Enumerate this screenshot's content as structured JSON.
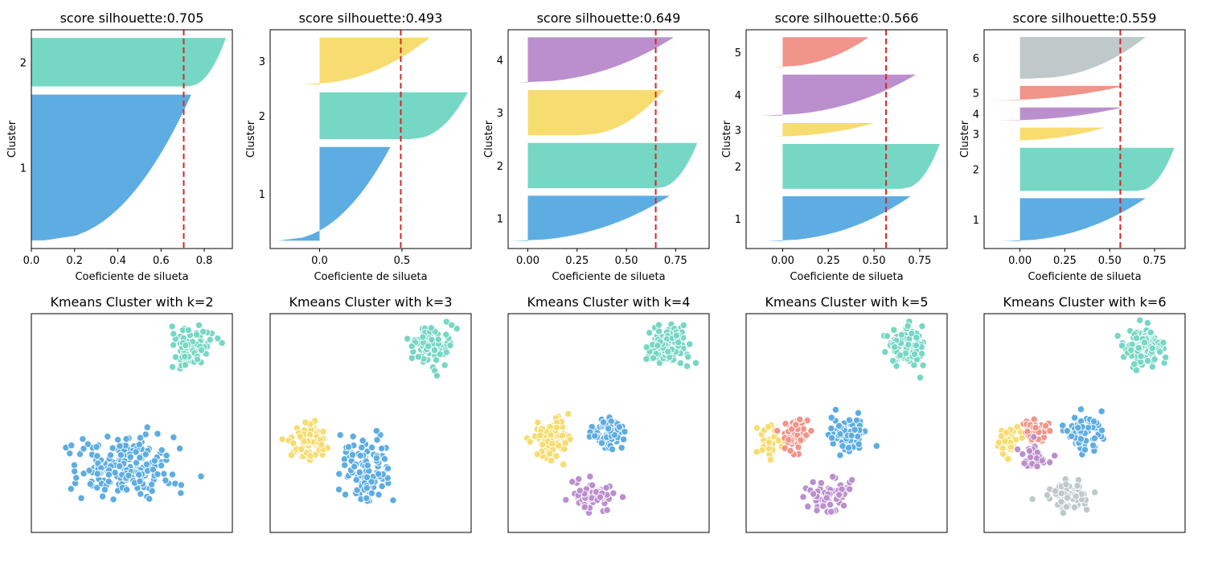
{
  "colors": {
    "c1": "#5DADE2",
    "c2": "#76D7C4",
    "c3": "#F7DC6F",
    "c4": "#BB8FCE",
    "c5": "#F1948A",
    "c6": "#BFC9CA",
    "mean_line": "#D62728"
  },
  "chart_data": [
    {
      "type": "bar",
      "subtype": "silhouette",
      "k": 2,
      "title": "score silhouette:0.705",
      "xlabel": "Coeficiente de silueta",
      "ylabel": "Cluster",
      "score": 0.705,
      "xlim": [
        0.0,
        0.93
      ],
      "xticks": [
        0.0,
        0.2,
        0.4,
        0.6,
        0.8
      ],
      "xtick_labels": [
        "0.0",
        "0.2",
        "0.4",
        "0.6",
        "0.8"
      ],
      "clusters": [
        {
          "label": "1",
          "color": "c1",
          "size": 180,
          "max": 0.74,
          "min": 0.06
        },
        {
          "label": "2",
          "color": "c2",
          "size": 60,
          "max": 0.9,
          "min": 0.72
        }
      ]
    },
    {
      "type": "bar",
      "subtype": "silhouette",
      "k": 3,
      "title": "score silhouette:0.493",
      "xlabel": "Coeficiente de silueta",
      "ylabel": "Cluster",
      "score": 0.493,
      "xlim": [
        -0.3,
        0.92
      ],
      "xticks": [
        0.0,
        0.5
      ],
      "xtick_labels": [
        "0.0",
        "0.5"
      ],
      "clusters": [
        {
          "label": "1",
          "color": "c1",
          "size": 120,
          "max": 0.43,
          "min": -0.25
        },
        {
          "label": "2",
          "color": "c2",
          "size": 60,
          "max": 0.9,
          "min": 0.55
        },
        {
          "label": "3",
          "color": "c3",
          "size": 60,
          "max": 0.67,
          "min": -0.12
        }
      ]
    },
    {
      "type": "bar",
      "subtype": "silhouette",
      "k": 4,
      "title": "score silhouette:0.649",
      "xlabel": "Coeficiente de silueta",
      "ylabel": "Cluster",
      "score": 0.649,
      "xlim": [
        -0.1,
        0.92
      ],
      "xticks": [
        0.0,
        0.25,
        0.5,
        0.75
      ],
      "xtick_labels": [
        "0.00",
        "0.25",
        "0.50",
        "0.75"
      ],
      "clusters": [
        {
          "label": "1",
          "color": "c1",
          "size": 60,
          "max": 0.72,
          "min": -0.09
        },
        {
          "label": "2",
          "color": "c2",
          "size": 60,
          "max": 0.86,
          "min": 0.65
        },
        {
          "label": "3",
          "color": "c3",
          "size": 60,
          "max": 0.69,
          "min": 0.25
        },
        {
          "label": "4",
          "color": "c4",
          "size": 60,
          "max": 0.74,
          "min": -0.05
        }
      ]
    },
    {
      "type": "bar",
      "subtype": "silhouette",
      "k": 5,
      "title": "score silhouette:0.566",
      "xlabel": "Coeficiente de silueta",
      "ylabel": "Cluster",
      "score": 0.566,
      "xlim": [
        -0.2,
        0.9
      ],
      "xticks": [
        0.0,
        0.25,
        0.5,
        0.75
      ],
      "xtick_labels": [
        "0.00",
        "0.25",
        "0.50",
        "0.75"
      ],
      "clusters": [
        {
          "label": "1",
          "color": "c1",
          "size": 60,
          "max": 0.7,
          "min": -0.09
        },
        {
          "label": "2",
          "color": "c2",
          "size": 60,
          "max": 0.86,
          "min": 0.65
        },
        {
          "label": "3",
          "color": "c3",
          "size": 18,
          "max": 0.5,
          "min": -0.08
        },
        {
          "label": "4",
          "color": "c4",
          "size": 55,
          "max": 0.73,
          "min": -0.12
        },
        {
          "label": "5",
          "color": "c5",
          "size": 40,
          "max": 0.47,
          "min": -0.05
        }
      ]
    },
    {
      "type": "bar",
      "subtype": "silhouette",
      "k": 6,
      "title": "score silhouette:0.559",
      "xlabel": "Coeficiente de silueta",
      "ylabel": "Cluster",
      "score": 0.559,
      "xlim": [
        -0.2,
        0.92
      ],
      "xticks": [
        0.0,
        0.25,
        0.5,
        0.75
      ],
      "xtick_labels": [
        "0.00",
        "0.25",
        "0.50",
        "0.75"
      ],
      "clusters": [
        {
          "label": "1",
          "color": "c1",
          "size": 60,
          "max": 0.7,
          "min": -0.1
        },
        {
          "label": "2",
          "color": "c2",
          "size": 60,
          "max": 0.86,
          "min": 0.65
        },
        {
          "label": "3",
          "color": "c3",
          "size": 18,
          "max": 0.47,
          "min": -0.07
        },
        {
          "label": "4",
          "color": "c4",
          "size": 18,
          "max": 0.57,
          "min": -0.13
        },
        {
          "label": "5",
          "color": "c5",
          "size": 20,
          "max": 0.58,
          "min": -0.18
        },
        {
          "label": "6",
          "color": "c6",
          "size": 58,
          "max": 0.7,
          "min": 0.05
        }
      ]
    },
    {
      "type": "scatter",
      "k": 2,
      "title": "Kmeans Cluster with k=2",
      "xlim": [
        0,
        100
      ],
      "ylim": [
        0,
        100
      ],
      "grid": false,
      "axis_ticks": false,
      "groups": [
        {
          "color": "c1",
          "cx": 46,
          "cy": 30,
          "sx": 22,
          "sy": 14,
          "n": 200
        },
        {
          "color": "c2",
          "cx": 80,
          "cy": 85,
          "sx": 9,
          "sy": 8,
          "n": 100
        }
      ]
    },
    {
      "type": "scatter",
      "k": 3,
      "title": "Kmeans Cluster with k=3",
      "xlim": [
        0,
        100
      ],
      "ylim": [
        0,
        100
      ],
      "grid": false,
      "axis_ticks": false,
      "groups": [
        {
          "color": "c3",
          "cx": 20,
          "cy": 42,
          "sx": 9,
          "sy": 9,
          "n": 80
        },
        {
          "color": "c1",
          "cx": 48,
          "cy": 28,
          "sx": 12,
          "sy": 13,
          "n": 120
        },
        {
          "color": "c2",
          "cx": 80,
          "cy": 85,
          "sx": 9,
          "sy": 8,
          "n": 100
        }
      ]
    },
    {
      "type": "scatter",
      "k": 4,
      "title": "Kmeans Cluster with k=4",
      "xlim": [
        0,
        100
      ],
      "ylim": [
        0,
        100
      ],
      "grid": false,
      "axis_ticks": false,
      "groups": [
        {
          "color": "c3",
          "cx": 22,
          "cy": 42,
          "sx": 9,
          "sy": 9,
          "n": 80
        },
        {
          "color": "c1",
          "cx": 50,
          "cy": 45,
          "sx": 8,
          "sy": 7,
          "n": 80
        },
        {
          "color": "c4",
          "cx": 42,
          "cy": 17,
          "sx": 9,
          "sy": 6,
          "n": 80
        },
        {
          "color": "c2",
          "cx": 80,
          "cy": 85,
          "sx": 9,
          "sy": 8,
          "n": 100
        }
      ]
    },
    {
      "type": "scatter",
      "k": 5,
      "title": "Kmeans Cluster with k=5",
      "xlim": [
        0,
        100
      ],
      "ylim": [
        0,
        100
      ],
      "grid": false,
      "axis_ticks": false,
      "groups": [
        {
          "color": "c3",
          "cx": 12,
          "cy": 40,
          "sx": 5,
          "sy": 7,
          "n": 30
        },
        {
          "color": "c5",
          "cx": 25,
          "cy": 45,
          "sx": 6,
          "sy": 7,
          "n": 60
        },
        {
          "color": "c1",
          "cx": 50,
          "cy": 45,
          "sx": 8,
          "sy": 7,
          "n": 80
        },
        {
          "color": "c4",
          "cx": 42,
          "cy": 17,
          "sx": 9,
          "sy": 6,
          "n": 80
        },
        {
          "color": "c2",
          "cx": 80,
          "cy": 85,
          "sx": 9,
          "sy": 8,
          "n": 100
        }
      ]
    },
    {
      "type": "scatter",
      "k": 6,
      "title": "Kmeans Cluster with k=6",
      "xlim": [
        0,
        100
      ],
      "ylim": [
        0,
        100
      ],
      "grid": false,
      "axis_ticks": false,
      "groups": [
        {
          "color": "c3",
          "cx": 12,
          "cy": 42,
          "sx": 5,
          "sy": 7,
          "n": 30
        },
        {
          "color": "c5",
          "cx": 26,
          "cy": 46,
          "sx": 6,
          "sy": 5,
          "n": 40
        },
        {
          "color": "c4",
          "cx": 26,
          "cy": 35,
          "sx": 6,
          "sy": 5,
          "n": 30
        },
        {
          "color": "c1",
          "cx": 50,
          "cy": 45,
          "sx": 8,
          "sy": 7,
          "n": 80
        },
        {
          "color": "c6",
          "cx": 42,
          "cy": 17,
          "sx": 9,
          "sy": 6,
          "n": 80
        },
        {
          "color": "c2",
          "cx": 80,
          "cy": 85,
          "sx": 9,
          "sy": 8,
          "n": 100
        }
      ]
    }
  ]
}
